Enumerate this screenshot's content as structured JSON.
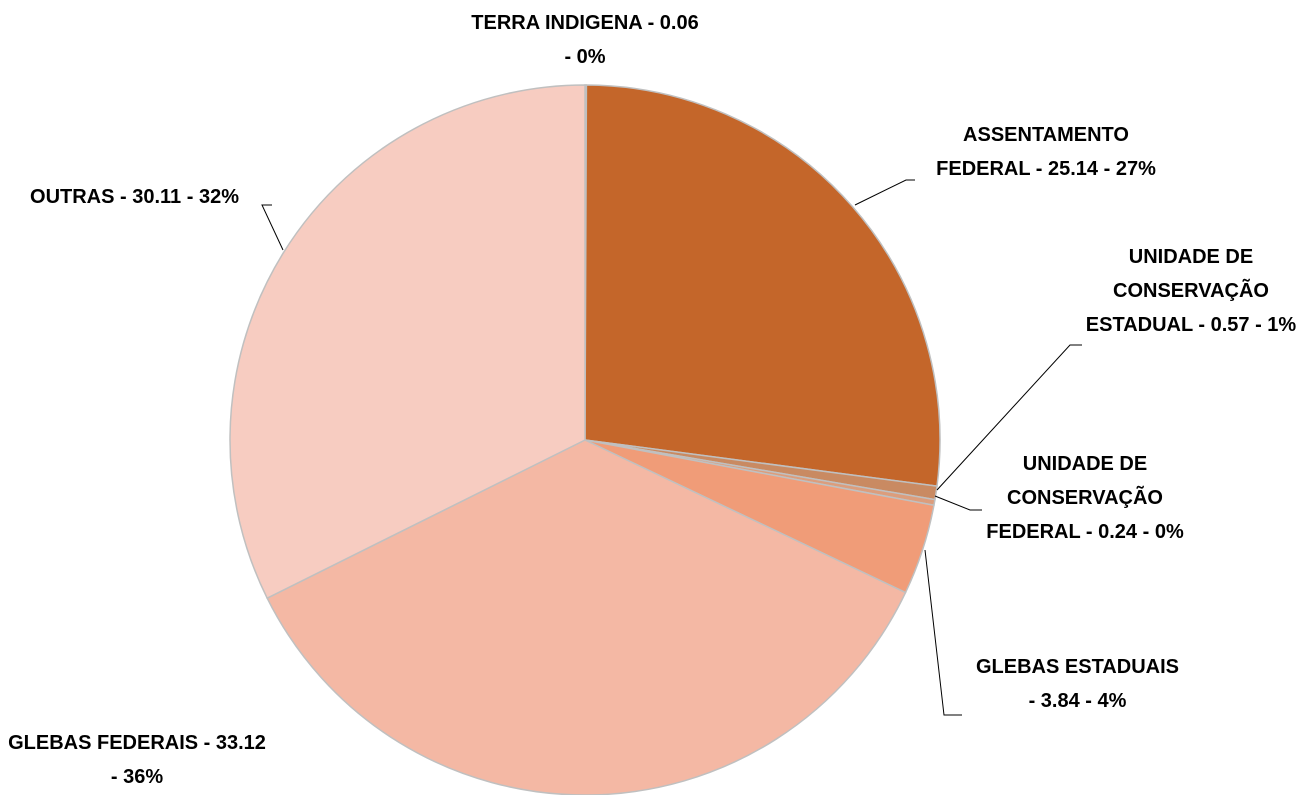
{
  "chart_data": {
    "type": "pie",
    "labels": [
      "TERRA INDIGENA - 0.06 - 0%",
      "ASSENTAMENTO FEDERAL - 25.14 - 27%",
      "UNIDADE DE CONSERVAÇÃO ESTADUAL - 0.57 - 1%",
      "UNIDADE DE CONSERVAÇÃO FEDERAL - 0.24 - 0%",
      "GLEBAS ESTADUAIS - 3.84 - 4%",
      "GLEBAS FEDERAIS - 33.12 - 36%",
      "OUTRAS - 30.11 - 32%"
    ],
    "values": [
      0.06,
      25.14,
      0.57,
      0.24,
      3.84,
      33.12,
      30.11
    ],
    "colors": [
      "#c97a4c",
      "#c4662a",
      "#c98a62",
      "#dc9d7c",
      "#f09c78",
      "#f4b8a4",
      "#f7ccc1"
    ]
  }
}
